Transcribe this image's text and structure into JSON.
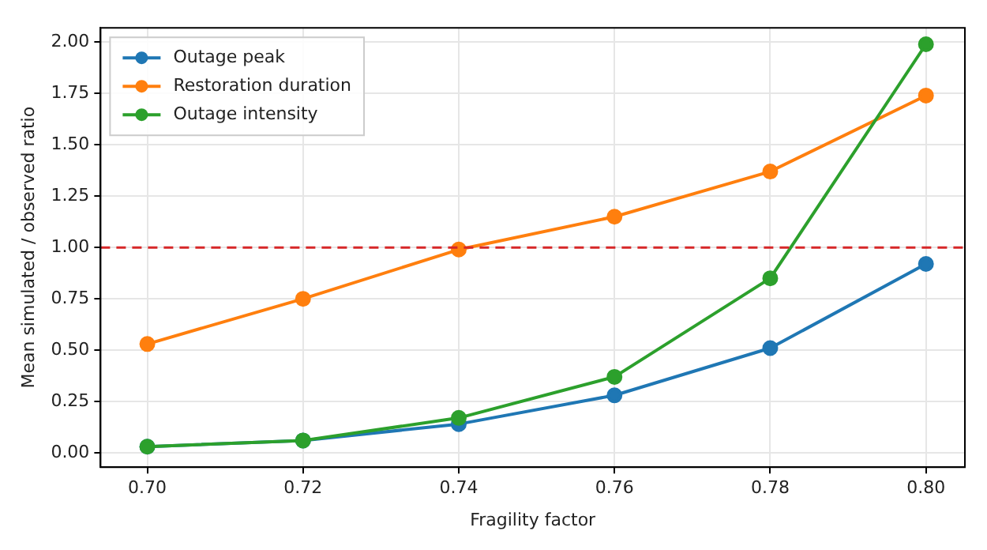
{
  "chart_data": {
    "type": "line",
    "xlabel": "Fragility factor",
    "ylabel": "Mean simulated / observed ratio",
    "x": [
      0.7,
      0.72,
      0.74,
      0.76,
      0.78,
      0.8
    ],
    "series": [
      {
        "name": "Outage peak",
        "color": "#1f77b4",
        "values": [
          0.03,
          0.06,
          0.14,
          0.28,
          0.51,
          0.92
        ]
      },
      {
        "name": "Restoration duration",
        "color": "#ff7f0e",
        "values": [
          0.53,
          0.75,
          0.99,
          1.15,
          1.37,
          1.74
        ]
      },
      {
        "name": "Outage intensity",
        "color": "#2ca02c",
        "values": [
          0.03,
          0.06,
          0.17,
          0.37,
          0.85,
          1.99
        ]
      }
    ],
    "xlim": [
      0.694,
      0.805
    ],
    "xticks": [
      {
        "value": 0.7,
        "label": "0.70"
      },
      {
        "value": 0.72,
        "label": "0.72"
      },
      {
        "value": 0.74,
        "label": "0.74"
      },
      {
        "value": 0.76,
        "label": "0.76"
      },
      {
        "value": 0.78,
        "label": "0.78"
      },
      {
        "value": 0.8,
        "label": "0.80"
      }
    ],
    "ylim": [
      -0.07,
      2.07
    ],
    "yticks": [
      {
        "value": 0,
        "label": "0.00"
      },
      {
        "value": 0.25,
        "label": "0.25"
      },
      {
        "value": 0.5,
        "label": "0.50"
      },
      {
        "value": 0.75,
        "label": "0.75"
      },
      {
        "value": 1,
        "label": "1.00"
      },
      {
        "value": 1.25,
        "label": "1.25"
      },
      {
        "value": 1.5,
        "label": "1.50"
      },
      {
        "value": 1.75,
        "label": "1.75"
      },
      {
        "value": 2,
        "label": "2.00"
      }
    ],
    "ref_lines": [
      {
        "axis": "y",
        "value": 1,
        "color": "#d62728",
        "line_style": "dashed"
      }
    ],
    "grid": true,
    "legend": "top left",
    "marker": "circle",
    "line_style": "solid"
  }
}
